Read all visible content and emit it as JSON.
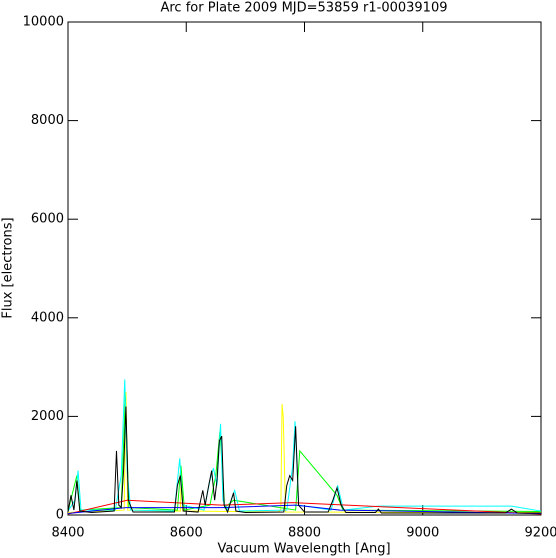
{
  "chart_data": {
    "type": "line",
    "title": "Arc for Plate 2009  MJD=53859  r1-00039109",
    "x_label": "Vacuum Wavelength [Ang]",
    "y_label": "Flux [electrons]",
    "xlim": [
      8400,
      9200
    ],
    "ylim": [
      0,
      10000
    ],
    "xticks": [
      8400,
      8600,
      8800,
      9000,
      9200
    ],
    "yticks": [
      0,
      2000,
      4000,
      6000,
      8000,
      10000
    ],
    "series": [
      {
        "color": "#ffff00",
        "x": [
          8400,
          8495,
          8498,
          8501,
          8590,
          8592,
          8594,
          8755,
          8760,
          8762,
          8764,
          8768,
          9200
        ],
        "values": [
          50,
          100,
          2500,
          100,
          80,
          900,
          80,
          60,
          100,
          2250,
          2000,
          60,
          50
        ]
      },
      {
        "color": "#00ff00",
        "x": [
          8400,
          8415,
          8420,
          8490,
          8497,
          8503,
          8585,
          8591,
          8597,
          8640,
          8650,
          8657,
          8665,
          8680,
          8785,
          8792,
          8855,
          8865,
          9200
        ],
        "values": [
          80,
          800,
          100,
          150,
          2400,
          150,
          100,
          1000,
          100,
          200,
          800,
          1700,
          150,
          300,
          100,
          1300,
          400,
          100,
          70
        ]
      },
      {
        "color": "#00ffff",
        "x": [
          8400,
          8412,
          8417,
          8422,
          8480,
          8490,
          8496,
          8500,
          8506,
          8580,
          8589,
          8594,
          8630,
          8640,
          8646,
          8652,
          8658,
          8662,
          8670,
          8682,
          8690,
          8770,
          8780,
          8784,
          8790,
          8845,
          8856,
          8866,
          8925,
          9150,
          9200
        ],
        "values": [
          80,
          300,
          900,
          100,
          100,
          800,
          2750,
          900,
          100,
          80,
          1150,
          200,
          100,
          700,
          950,
          600,
          1850,
          300,
          100,
          500,
          80,
          100,
          1000,
          1900,
          200,
          100,
          600,
          100,
          180,
          180,
          80
        ]
      },
      {
        "color": "#ff0000",
        "x": [
          8400,
          8500,
          8660,
          8780,
          9200
        ],
        "values": [
          20,
          300,
          200,
          250,
          20
        ]
      },
      {
        "color": "#0000ff",
        "x": [
          8400,
          8498,
          8660,
          8785,
          8860,
          9200
        ],
        "values": [
          30,
          150,
          150,
          200,
          100,
          30
        ]
      },
      {
        "color": "#000000",
        "x": [
          8400,
          8405,
          8410,
          8415,
          8420,
          8440,
          8478,
          8482,
          8486,
          8490,
          8494,
          8498,
          8502,
          8510,
          8580,
          8585,
          8590,
          8595,
          8620,
          8628,
          8632,
          8638,
          8643,
          8648,
          8652,
          8656,
          8660,
          8664,
          8670,
          8676,
          8680,
          8684,
          8700,
          8765,
          8770,
          8775,
          8780,
          8785,
          8790,
          8800,
          8840,
          8848,
          8855,
          8862,
          8870,
          8920,
          8925,
          8930,
          9140,
          9150,
          9160,
          9200
        ],
        "values": [
          60,
          400,
          100,
          700,
          80,
          50,
          80,
          1300,
          200,
          150,
          900,
          2200,
          300,
          60,
          60,
          600,
          800,
          80,
          60,
          500,
          200,
          600,
          900,
          300,
          700,
          1500,
          1600,
          200,
          60,
          300,
          450,
          80,
          50,
          60,
          600,
          800,
          700,
          1800,
          200,
          60,
          60,
          300,
          550,
          200,
          50,
          50,
          120,
          40,
          40,
          120,
          40,
          40
        ]
      }
    ]
  }
}
